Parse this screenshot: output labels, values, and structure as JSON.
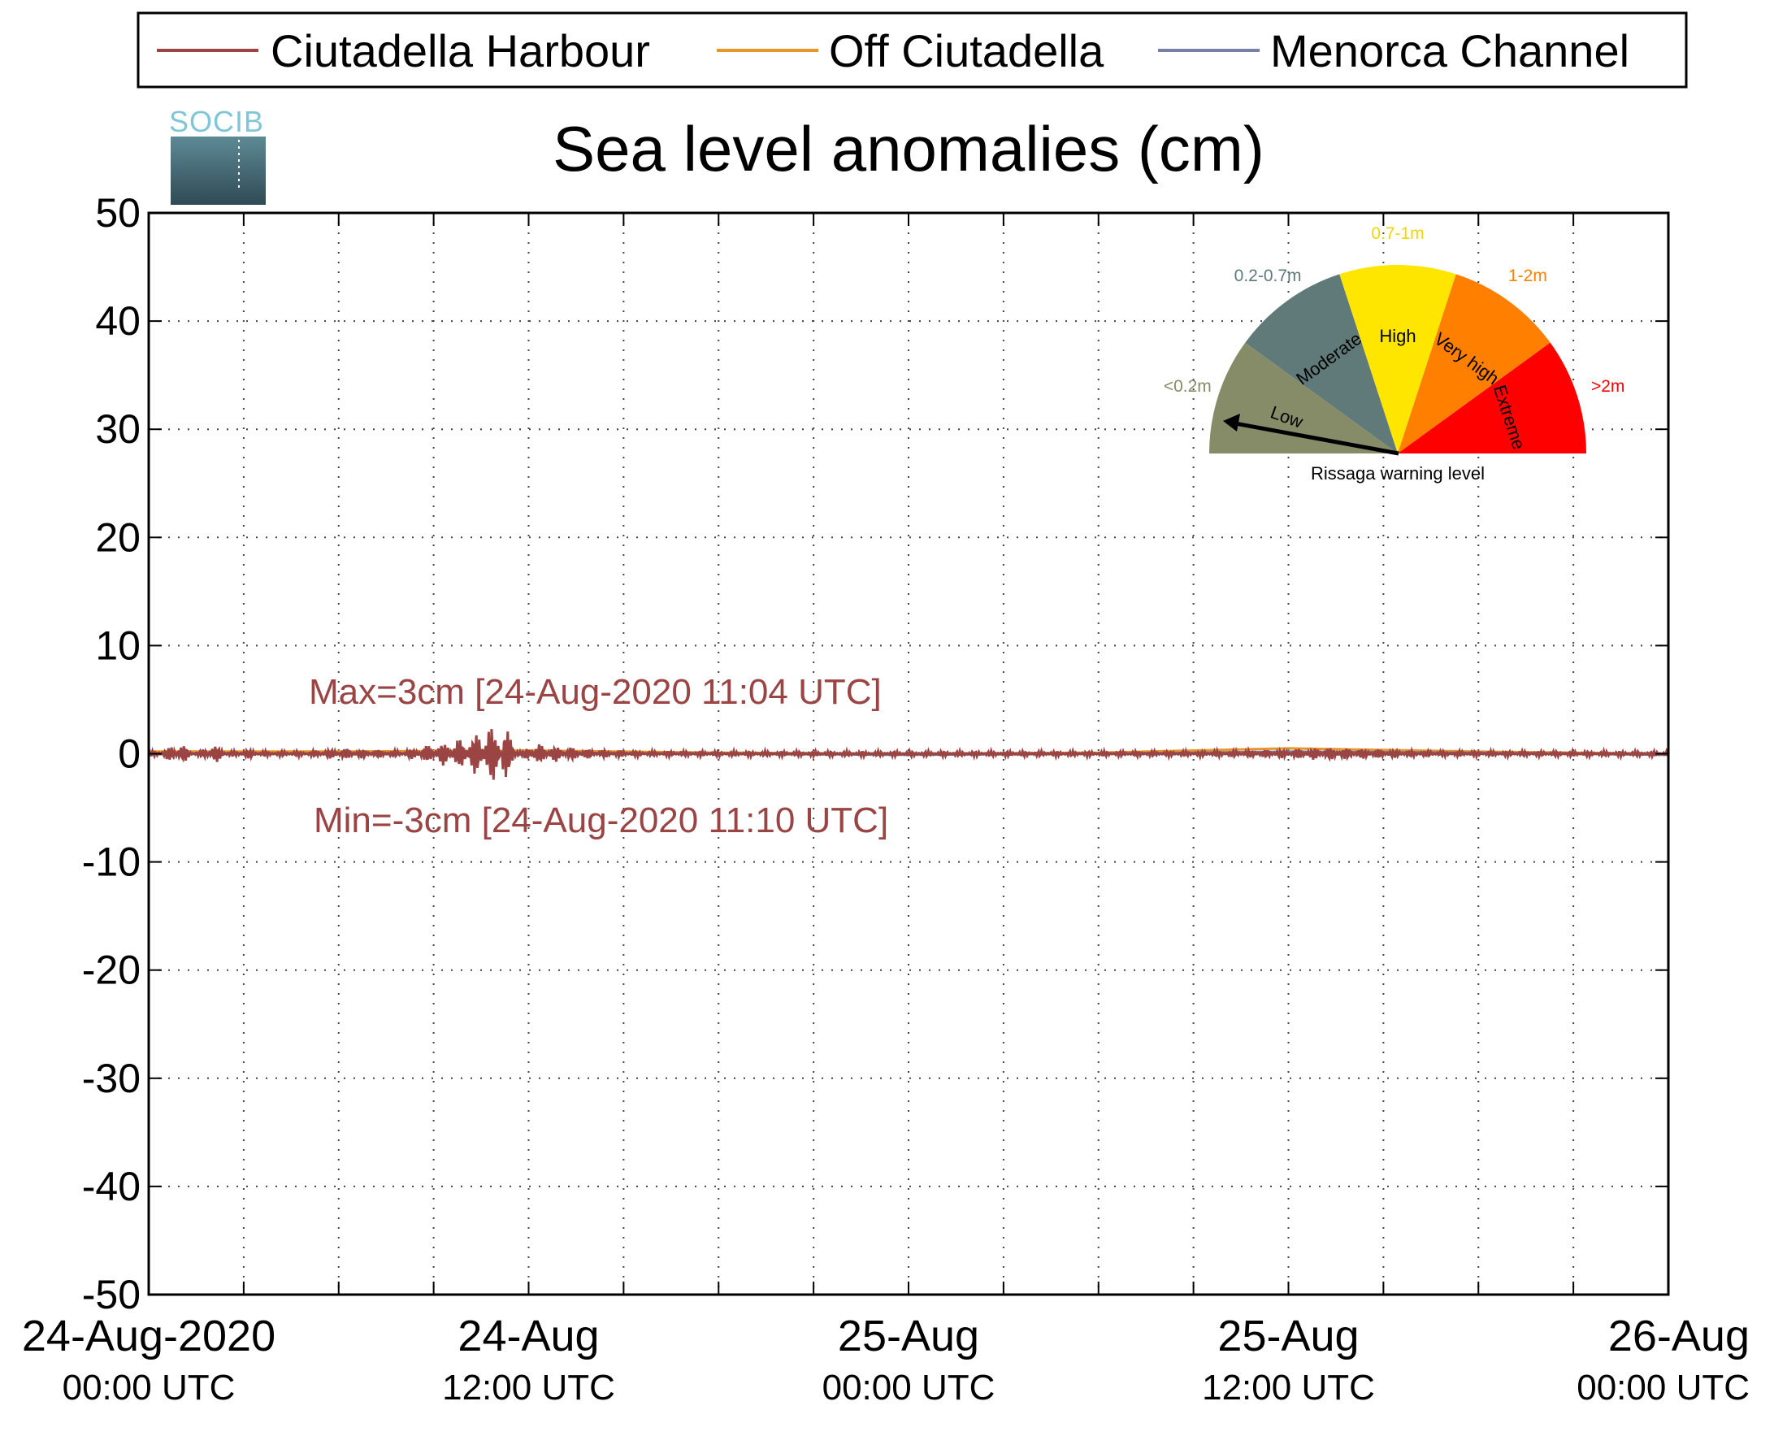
{
  "chart_data": {
    "type": "line",
    "title": "Sea level anomalies (cm)",
    "ylim": [
      -50,
      50
    ],
    "yticks": [
      50,
      40,
      30,
      20,
      10,
      0,
      -10,
      -20,
      -30,
      -40,
      -50
    ],
    "xlim_hours": [
      0,
      48
    ],
    "xticks": [
      {
        "date": "24-Aug-2020",
        "time": "00:00 UTC"
      },
      {
        "date": "24-Aug",
        "time": "12:00 UTC"
      },
      {
        "date": "25-Aug",
        "time": "00:00 UTC"
      },
      {
        "date": "25-Aug",
        "time": "12:00 UTC"
      },
      {
        "date": "26-Aug",
        "time": "00:00 UTC"
      }
    ],
    "grid": true,
    "legend_position": "top",
    "series": [
      {
        "name": "Ciutadella Harbour",
        "color": "#9a4444",
        "x_hours": [
          0,
          1,
          2,
          3,
          4,
          6,
          8,
          10,
          11.07,
          11.17,
          12,
          14,
          16,
          18,
          20,
          24,
          28,
          32,
          36,
          37,
          40,
          44,
          48
        ],
        "values": [
          0,
          1,
          -1,
          0.5,
          0,
          0.5,
          0.3,
          1.5,
          3,
          -3,
          1,
          0.4,
          0.2,
          0.1,
          0.1,
          0,
          0,
          0.2,
          0.4,
          0.6,
          0.3,
          0.1,
          -0.1
        ]
      },
      {
        "name": "Off Ciutadella",
        "color": "#e8952a",
        "x_hours": [
          0,
          6,
          12,
          18,
          24,
          30,
          36,
          42,
          48
        ],
        "values": [
          0.2,
          0.2,
          0.3,
          0.1,
          0,
          0.1,
          0.5,
          0.2,
          0
        ]
      },
      {
        "name": "Menorca Channel",
        "color": "#7a7fa6",
        "x_hours": [
          0,
          6,
          12,
          18,
          24,
          30,
          36,
          42,
          48
        ],
        "values": [
          0,
          0,
          0.1,
          0,
          -0.1,
          0,
          0.2,
          0.1,
          -0.1
        ]
      }
    ],
    "annotations": {
      "max": "Max=3cm [24-Aug-2020 11:04 UTC]",
      "min": "Min=-3cm [24-Aug-2020 11:10 UTC]"
    }
  },
  "logo": {
    "text": "SOCIB"
  },
  "gauge": {
    "caption": "Rissaga warning level",
    "pointer_level": "Low",
    "sectors": [
      {
        "label": "Low",
        "range": "<0.2m",
        "color": "#878c68",
        "range_color": "#878c68"
      },
      {
        "label": "Moderate",
        "range": "0.2-0.7m",
        "color": "#5f7a78",
        "range_color": "#5f7a78"
      },
      {
        "label": "High",
        "range": "0.7-1m",
        "color": "#ffe600",
        "range_color": "#f2d600"
      },
      {
        "label": "Very high",
        "range": "1-2m",
        "color": "#ff8000",
        "range_color": "#ff8000"
      },
      {
        "label": "Extreme",
        "range": ">2m",
        "color": "#ff0000",
        "range_color": "#ff0000"
      }
    ]
  }
}
